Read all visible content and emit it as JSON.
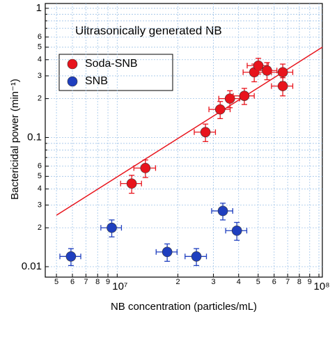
{
  "chart_data": {
    "type": "scatter",
    "annotation": "Ultrasonically generated NB",
    "x_label": "NB concentration  (particles/mL)",
    "y_label": "Bactericidal power (min⁻¹)",
    "log_x": true,
    "log_y": true,
    "grid": true,
    "legend": "upper left",
    "xlim": [
      4400000,
      104000000
    ],
    "ylim": [
      0.0083,
      1.09
    ],
    "xticks": [
      {
        "value": 5000000,
        "label": "5"
      },
      {
        "value": 6000000,
        "label": "6"
      },
      {
        "value": 7000000,
        "label": "7"
      },
      {
        "value": 8000000,
        "label": "8"
      },
      {
        "value": 9000000,
        "label": "9"
      },
      {
        "value": 10000000,
        "label": "10⁷"
      },
      {
        "value": 20000000,
        "label": "2"
      },
      {
        "value": 30000000,
        "label": "3"
      },
      {
        "value": 40000000,
        "label": "4"
      },
      {
        "value": 50000000,
        "label": "5"
      },
      {
        "value": 60000000,
        "label": "6"
      },
      {
        "value": 70000000,
        "label": "7"
      },
      {
        "value": 80000000,
        "label": "8"
      },
      {
        "value": 90000000,
        "label": "9"
      },
      {
        "value": 100000000,
        "label": "10⁸"
      }
    ],
    "yticks": [
      0.01,
      {
        "value": 0.02,
        "label": "2"
      },
      {
        "value": 0.03,
        "label": "3"
      },
      {
        "value": 0.04,
        "label": "4"
      },
      {
        "value": 0.05,
        "label": "5"
      },
      {
        "value": 0.06,
        "label": "6"
      },
      0.1,
      {
        "value": 0.2,
        "label": "2"
      },
      {
        "value": 0.3,
        "label": "3"
      },
      {
        "value": 0.4,
        "label": "4"
      },
      {
        "value": 0.5,
        "label": "5"
      },
      {
        "value": 0.6,
        "label": "6"
      },
      1
    ],
    "yminor_ticks": [
      0.07,
      0.08,
      0.09,
      0.7,
      0.8,
      0.9
    ],
    "series": [
      {
        "name": "Soda-SNB",
        "color": "#e8141c",
        "x": [
          11800000,
          13800000,
          27400000,
          32400000,
          36200000,
          42700000,
          47800000,
          50100000,
          55300000,
          66200000,
          66200000
        ],
        "values": [
          0.044,
          0.058,
          0.11,
          0.165,
          0.2,
          0.21,
          0.32,
          0.36,
          0.33,
          0.32,
          0.25
        ],
        "x_error": [
          1400000,
          1700000,
          3300000,
          3900000,
          4300000,
          5100000,
          5700000,
          6000000,
          6600000,
          8000000,
          8000000
        ],
        "y_error": [
          0.007,
          0.009,
          0.017,
          0.025,
          0.03,
          0.03,
          0.05,
          0.05,
          0.05,
          0.05,
          0.04
        ]
      },
      {
        "name": "SNB",
        "color": "#1f3fbf",
        "x": [
          5900000,
          9400000,
          17700000,
          24700000,
          33400000,
          39200000
        ],
        "values": [
          0.012,
          0.02,
          0.013,
          0.012,
          0.027,
          0.019
        ],
        "x_error": [
          700000,
          1100000,
          2100000,
          3000000,
          4000000,
          4700000
        ],
        "y_error": [
          0.0018,
          0.003,
          0.002,
          0.0018,
          0.004,
          0.003
        ]
      }
    ],
    "fit": {
      "color": "#e8141c",
      "x": [
        5000000,
        104000000
      ],
      "y": [
        0.025,
        0.5
      ]
    }
  }
}
